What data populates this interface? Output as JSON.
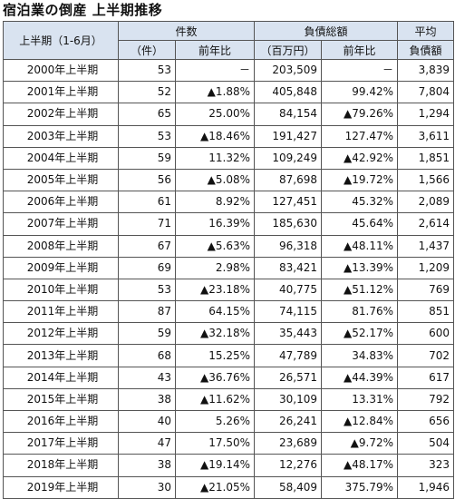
{
  "title": "宿泊業の倒産 上半期推移",
  "headers": {
    "period": "上半期（1-6月）",
    "count_group": "件数",
    "count_unit": "（件）",
    "count_yoy": "前年比",
    "debt_group": "負債総額",
    "debt_unit": "（百万円）",
    "debt_yoy": "前年比",
    "avg_top": "平均",
    "avg_bottom": "負債額"
  },
  "rows": [
    {
      "period": "2000年上半期",
      "count": "53",
      "count_yoy": "－",
      "debt": "203,509",
      "debt_yoy": "－",
      "avg": "3,839"
    },
    {
      "period": "2001年上半期",
      "count": "52",
      "count_yoy": "▲1.88%",
      "debt": "405,848",
      "debt_yoy": "99.42%",
      "avg": "7,804"
    },
    {
      "period": "2002年上半期",
      "count": "65",
      "count_yoy": "25.00%",
      "debt": "84,154",
      "debt_yoy": "▲79.26%",
      "avg": "1,294"
    },
    {
      "period": "2003年上半期",
      "count": "53",
      "count_yoy": "▲18.46%",
      "debt": "191,427",
      "debt_yoy": "127.47%",
      "avg": "3,611"
    },
    {
      "period": "2004年上半期",
      "count": "59",
      "count_yoy": "11.32%",
      "debt": "109,249",
      "debt_yoy": "▲42.92%",
      "avg": "1,851"
    },
    {
      "period": "2005年上半期",
      "count": "56",
      "count_yoy": "▲5.08%",
      "debt": "87,698",
      "debt_yoy": "▲19.72%",
      "avg": "1,566"
    },
    {
      "period": "2006年上半期",
      "count": "61",
      "count_yoy": "8.92%",
      "debt": "127,451",
      "debt_yoy": "45.32%",
      "avg": "2,089"
    },
    {
      "period": "2007年上半期",
      "count": "71",
      "count_yoy": "16.39%",
      "debt": "185,630",
      "debt_yoy": "45.64%",
      "avg": "2,614"
    },
    {
      "period": "2008年上半期",
      "count": "67",
      "count_yoy": "▲5.63%",
      "debt": "96,318",
      "debt_yoy": "▲48.11%",
      "avg": "1,437"
    },
    {
      "period": "2009年上半期",
      "count": "69",
      "count_yoy": "2.98%",
      "debt": "83,421",
      "debt_yoy": "▲13.39%",
      "avg": "1,209"
    },
    {
      "period": "2010年上半期",
      "count": "53",
      "count_yoy": "▲23.18%",
      "debt": "40,775",
      "debt_yoy": "▲51.12%",
      "avg": "769"
    },
    {
      "period": "2011年上半期",
      "count": "87",
      "count_yoy": "64.15%",
      "debt": "74,115",
      "debt_yoy": "81.76%",
      "avg": "851"
    },
    {
      "period": "2012年上半期",
      "count": "59",
      "count_yoy": "▲32.18%",
      "debt": "35,443",
      "debt_yoy": "▲52.17%",
      "avg": "600"
    },
    {
      "period": "2013年上半期",
      "count": "68",
      "count_yoy": "15.25%",
      "debt": "47,789",
      "debt_yoy": "34.83%",
      "avg": "702"
    },
    {
      "period": "2014年上半期",
      "count": "43",
      "count_yoy": "▲36.76%",
      "debt": "26,571",
      "debt_yoy": "▲44.39%",
      "avg": "617"
    },
    {
      "period": "2015年上半期",
      "count": "38",
      "count_yoy": "▲11.62%",
      "debt": "30,109",
      "debt_yoy": "13.31%",
      "avg": "792"
    },
    {
      "period": "2016年上半期",
      "count": "40",
      "count_yoy": "5.26%",
      "debt": "26,241",
      "debt_yoy": "▲12.84%",
      "avg": "656"
    },
    {
      "period": "2017年上半期",
      "count": "47",
      "count_yoy": "17.50%",
      "debt": "23,689",
      "debt_yoy": "▲9.72%",
      "avg": "504"
    },
    {
      "period": "2018年上半期",
      "count": "38",
      "count_yoy": "▲19.14%",
      "debt": "12,276",
      "debt_yoy": "▲48.17%",
      "avg": "323"
    },
    {
      "period": "2019年上半期",
      "count": "30",
      "count_yoy": "▲21.05%",
      "debt": "58,409",
      "debt_yoy": "375.79%",
      "avg": "1,946"
    }
  ]
}
